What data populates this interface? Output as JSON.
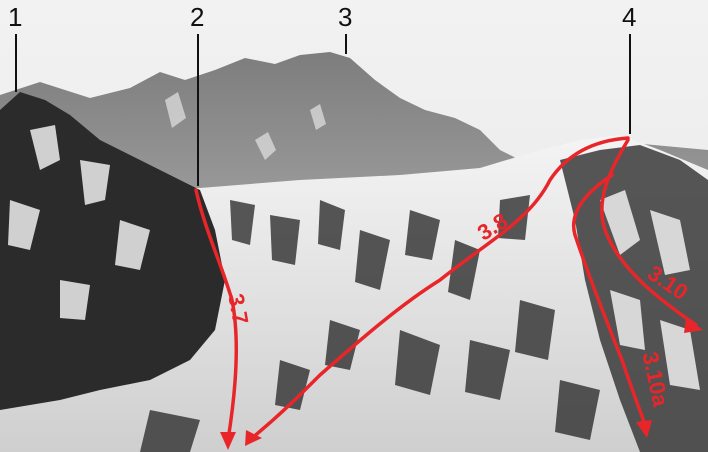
{
  "peaks": [
    {
      "label": "1"
    },
    {
      "label": "2"
    },
    {
      "label": "3"
    },
    {
      "label": "4"
    }
  ],
  "routes": [
    {
      "label": "3.7"
    },
    {
      "label": "3.8"
    },
    {
      "label": "3.10"
    },
    {
      "label": "3.10a"
    }
  ],
  "colors": {
    "route": "#e8262a",
    "marker": "#111111"
  }
}
